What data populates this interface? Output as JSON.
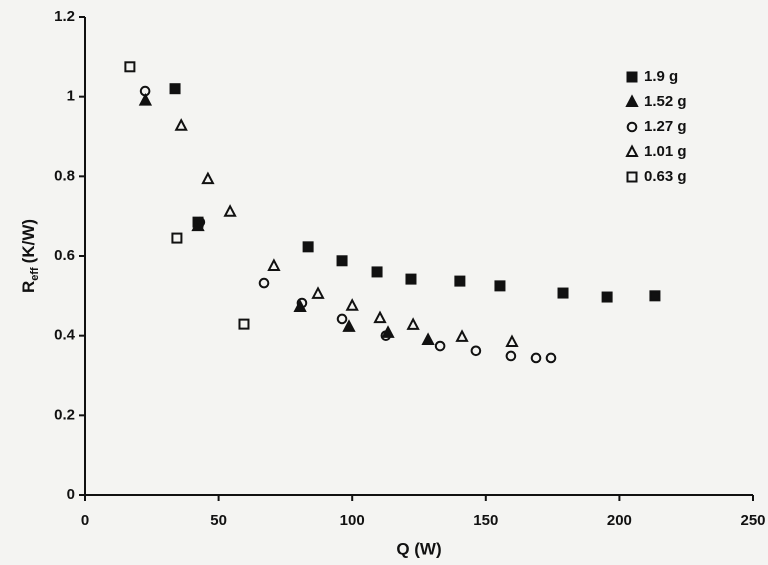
{
  "chart_data": {
    "type": "scatter",
    "xlabel": "Q (W)",
    "ylabel": {
      "main": "R",
      "sub": "eff",
      "unit": "(K/W)"
    },
    "xlim": [
      0,
      250
    ],
    "xticks": [
      0,
      50,
      100,
      150,
      200,
      250
    ],
    "ylim": [
      0,
      1.2
    ],
    "yticks": [
      0,
      0.2,
      0.4,
      0.6,
      0.8,
      1,
      1.2
    ],
    "legend": "top-right",
    "series": [
      {
        "name": "1.9 g",
        "color": "#111111",
        "marker": "square",
        "filled": true,
        "x": [
          33.7,
          42.3,
          83.5,
          96.2,
          109.3,
          122,
          140.3,
          155.3,
          178.9,
          195.4,
          213.3
        ],
        "values": [
          1.02,
          0.685,
          0.623,
          0.588,
          0.56,
          0.542,
          0.537,
          0.525,
          0.507,
          0.497,
          0.5
        ]
      },
      {
        "name": "1.52 g",
        "color": "#111111",
        "marker": "triangle",
        "filled": true,
        "x": [
          22.6,
          42.3,
          80.5,
          98.8,
          113.4,
          128.4
        ],
        "values": [
          0.99,
          0.675,
          0.472,
          0.422,
          0.407,
          0.389
        ]
      },
      {
        "name": "1.27 g",
        "color": "#111111",
        "marker": "circle",
        "filled": false,
        "x": [
          22.5,
          43,
          67,
          81.2,
          96.2,
          112.6,
          132.9,
          146.3,
          159.4,
          168.8,
          174.4
        ],
        "values": [
          1.014,
          0.685,
          0.532,
          0.482,
          0.442,
          0.4,
          0.374,
          0.362,
          0.349,
          0.344,
          0.344
        ]
      },
      {
        "name": "1.01 g",
        "color": "#111111",
        "marker": "triangle",
        "filled": false,
        "x": [
          36,
          46,
          54.3,
          70.7,
          87.2,
          100,
          110.4,
          122.8,
          141.1,
          159.8
        ],
        "values": [
          0.927,
          0.793,
          0.711,
          0.575,
          0.505,
          0.475,
          0.444,
          0.427,
          0.397,
          0.384
        ]
      },
      {
        "name": "0.63 g",
        "color": "#111111",
        "marker": "square",
        "filled": false,
        "x": [
          16.8,
          34.4,
          59.5
        ],
        "values": [
          1.075,
          0.645,
          0.429
        ]
      }
    ]
  }
}
